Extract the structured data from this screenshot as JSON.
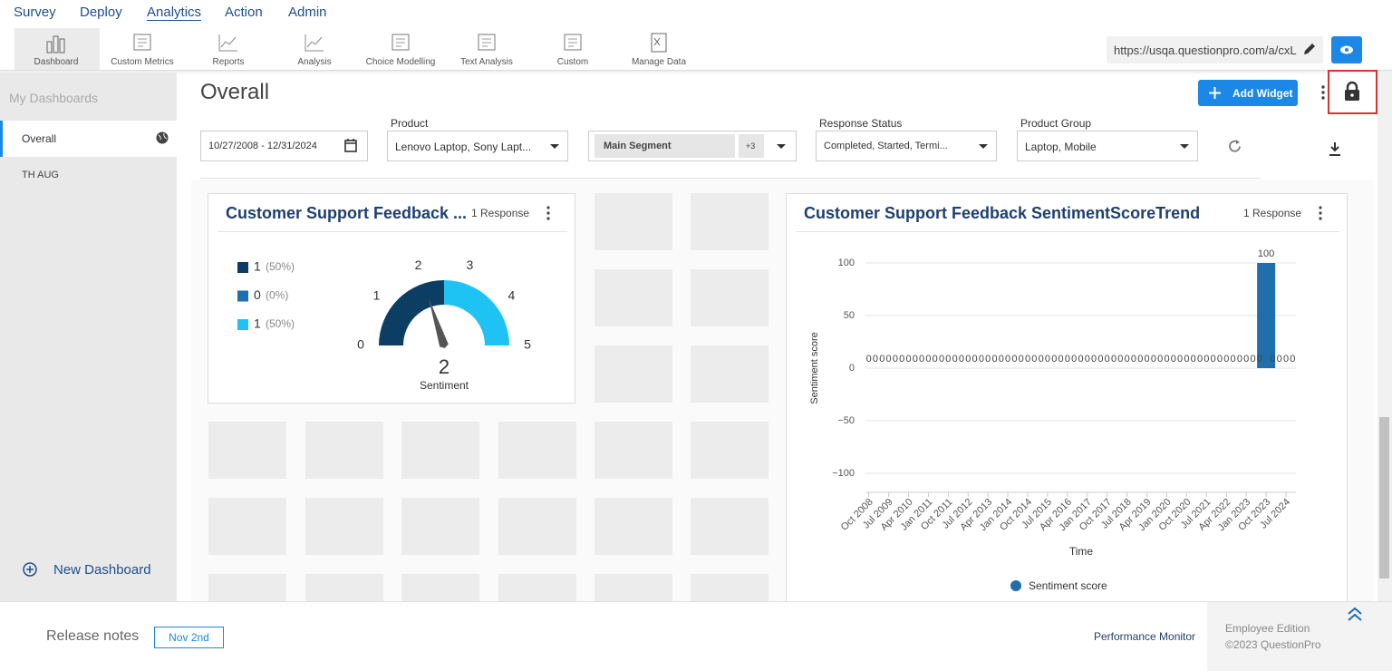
{
  "nav": {
    "items": [
      "Survey",
      "Deploy",
      "Analytics",
      "Action",
      "Admin"
    ]
  },
  "toolbar": {
    "items": [
      "Dashboard",
      "Custom Metrics",
      "Reports",
      "Analysis",
      "Choice Modelling",
      "Text Analysis",
      "Custom",
      "Manage Data"
    ],
    "url": "https://usqa.questionpro.com/a/cxL"
  },
  "sidebar": {
    "title": "My Dashboards",
    "items": [
      "Overall",
      "TH AUG"
    ],
    "new_dashboard": "New Dashboard"
  },
  "header": {
    "title": "Overall",
    "add_widget": "Add Widget"
  },
  "filters": {
    "date_range": "10/27/2008 - 12/31/2024",
    "product": {
      "label": "Product",
      "value": "Lenovo Laptop, Sony Lapt..."
    },
    "segment": {
      "value": "Main Segment",
      "extra": "+3"
    },
    "response_status": {
      "label": "Response Status",
      "value": "Completed, Started, Termi..."
    },
    "product_group": {
      "label": "Product Group",
      "value": "Laptop, Mobile"
    }
  },
  "gauge_widget": {
    "title": "Customer Support Feedback ...",
    "responses": "1 Response",
    "legend": [
      {
        "count": 1,
        "percent": "(50%)",
        "color": "#0c3e63"
      },
      {
        "count": 0,
        "percent": "(0%)",
        "color": "#1f6fad"
      },
      {
        "count": 1,
        "percent": "(50%)",
        "color": "#1ec3f3"
      }
    ],
    "min": 0,
    "max": 5,
    "ticks": [
      0,
      1,
      2,
      3,
      4,
      5
    ],
    "value": 2,
    "label": "Sentiment"
  },
  "trend_widget": {
    "title": "Customer Support Feedback SentimentScoreTrend",
    "responses": "1 Response",
    "chart_data": {
      "type": "bar",
      "xlabel": "Time",
      "ylabel": "Sentiment score",
      "categories": [
        "Oct 2008",
        null,
        null,
        "Jul 2009",
        null,
        null,
        "Apr 2010",
        null,
        null,
        "Jan 2011",
        null,
        null,
        "Oct 2011",
        null,
        null,
        "Jul 2012",
        null,
        null,
        "Apr 2013",
        null,
        null,
        "Jan 2014",
        null,
        null,
        "Oct 2014",
        null,
        null,
        "Jul 2015",
        null,
        null,
        "Apr 2016",
        null,
        null,
        "Jan 2017",
        null,
        null,
        "Oct 2017",
        null,
        null,
        "Jul 2018",
        null,
        null,
        "Apr 2019",
        null,
        null,
        "Jan 2020",
        null,
        null,
        "Oct 2020",
        null,
        null,
        "Jul 2021",
        null,
        null,
        "Apr 2022",
        null,
        null,
        "Jan 2023",
        null,
        null,
        "Oct 2023",
        null,
        null,
        "Jul 2024",
        null
      ],
      "series": [
        {
          "name": "Sentiment score",
          "color": "#1f6fad",
          "values": [
            0,
            0,
            0,
            0,
            0,
            0,
            0,
            0,
            0,
            0,
            0,
            0,
            0,
            0,
            0,
            0,
            0,
            0,
            0,
            0,
            0,
            0,
            0,
            0,
            0,
            0,
            0,
            0,
            0,
            0,
            0,
            0,
            0,
            0,
            0,
            0,
            0,
            0,
            0,
            0,
            0,
            0,
            0,
            0,
            0,
            0,
            0,
            0,
            0,
            0,
            0,
            0,
            0,
            0,
            0,
            0,
            0,
            0,
            0,
            0,
            100,
            0,
            0,
            0,
            0
          ]
        }
      ],
      "ylim": [
        -100,
        100
      ],
      "yticks": [
        100,
        50,
        0,
        {
          "value": -50,
          "label": "−50"
        },
        {
          "value": -100,
          "label": "−100"
        }
      ],
      "grid": true,
      "legend": "bottom"
    }
  },
  "footer": {
    "release_notes": "Release notes",
    "release_date": "Nov 2nd",
    "performance_monitor": "Performance Monitor",
    "edition": "Employee Edition",
    "copyright": "©2023 QuestionPro"
  }
}
